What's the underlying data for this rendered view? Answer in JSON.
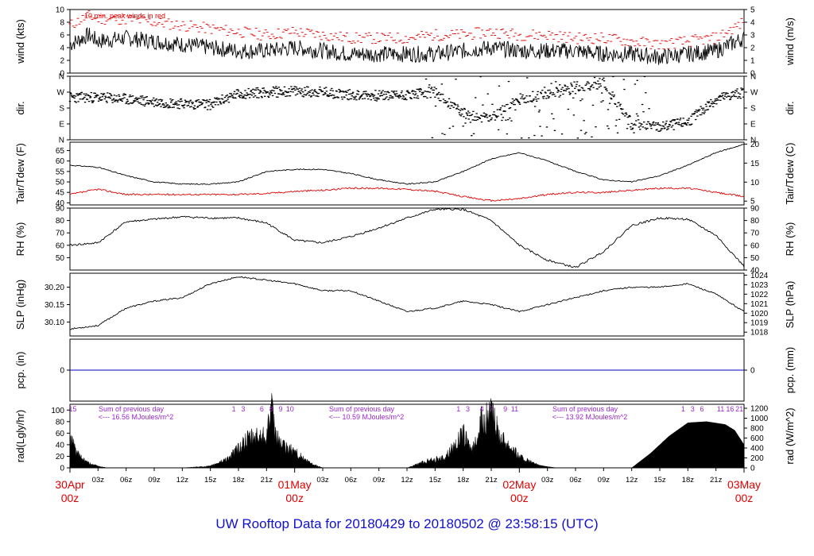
{
  "title": "UW Rooftop Data for 20180429  to  20180502 @ 23:58:15  (UTC)",
  "colors": {
    "title": "#1010d0",
    "peak": "#e00000",
    "dew": "#e00000",
    "precip": "#0000c0",
    "annot": "#9a28c8",
    "date": "#e00000",
    "line": "#000000"
  },
  "chart_data": [
    {
      "type": "line",
      "id": "wind",
      "ylabel_left": "wind (kts)",
      "ylabel_right": "wind (m/s)",
      "ylim": [
        0,
        10
      ],
      "ylim_right": [
        0,
        5
      ],
      "yticks": [
        0,
        2,
        4,
        6,
        8,
        10
      ],
      "yticks_right": [
        0,
        1,
        2,
        3,
        4,
        5
      ],
      "annotation": "10 min. peak winds in red",
      "x_hours": [
        0,
        2,
        3,
        6,
        9,
        12,
        15,
        18,
        21,
        24,
        27,
        30,
        33,
        36,
        39,
        42,
        45,
        48,
        51,
        54,
        57,
        60,
        63,
        66,
        69,
        72
      ],
      "series": [
        {
          "values": [
            4.5,
            6,
            5,
            5.5,
            5,
            4.5,
            4,
            3.5,
            3.5,
            4,
            3.5,
            3,
            3,
            3,
            3,
            3.5,
            4,
            3.5,
            3.5,
            3.5,
            3,
            3,
            2.5,
            3,
            3.5,
            5.5
          ]
        },
        {
          "values": [
            7.5,
            9,
            8.5,
            8.5,
            8,
            7.5,
            7,
            6.5,
            6,
            6.5,
            6,
            5.5,
            5.5,
            5.5,
            6,
            6,
            6.5,
            6,
            6,
            5.5,
            5.5,
            5,
            4.5,
            5,
            5.5,
            8
          ]
        }
      ]
    },
    {
      "type": "scatter",
      "id": "dir",
      "ylabel_left": "dir.",
      "ylabel_right": "dir.",
      "ylim": [
        0,
        360
      ],
      "yticks": [
        "N",
        "E",
        "S",
        "W",
        "N"
      ],
      "yticks_right": [
        "N",
        "E",
        "S",
        "W",
        "N"
      ],
      "x_hours": [
        0,
        3,
        6,
        9,
        12,
        15,
        18,
        21,
        24,
        27,
        30,
        33,
        36,
        39,
        42,
        45,
        48,
        51,
        54,
        57,
        60,
        63,
        66,
        69,
        72
      ],
      "values": [
        240,
        240,
        230,
        215,
        205,
        200,
        260,
        270,
        275,
        270,
        255,
        250,
        255,
        270,
        150,
        120,
        230,
        260,
        300,
        320,
        90,
        70,
        100,
        230,
        270
      ]
    },
    {
      "type": "line",
      "id": "temp",
      "ylabel_left": "Tair/Tdew (F)",
      "ylabel_right": "Tair/Tdew (C)",
      "ylim": [
        39,
        69
      ],
      "ylim_right": [
        4,
        20.5
      ],
      "yticks": [
        40,
        45,
        50,
        55,
        60,
        65
      ],
      "yticks_right": [
        5,
        10,
        15,
        20
      ],
      "x_hours": [
        0,
        3,
        6,
        9,
        12,
        15,
        18,
        21,
        24,
        27,
        30,
        33,
        36,
        39,
        42,
        45,
        48,
        51,
        54,
        57,
        60,
        63,
        66,
        69,
        72
      ],
      "series": [
        {
          "values": [
            58,
            57,
            53,
            50,
            49,
            49,
            50,
            55,
            56,
            56,
            54,
            51,
            49,
            50,
            55,
            61,
            64,
            60,
            55,
            51,
            50,
            53,
            58,
            64,
            68
          ]
        },
        {
          "values": [
            44,
            46.5,
            44,
            44,
            44,
            44,
            44,
            44.5,
            45.5,
            46,
            47,
            47,
            46.5,
            45.5,
            43,
            41,
            42,
            44,
            45,
            45,
            46,
            47,
            47,
            45,
            43
          ]
        }
      ]
    },
    {
      "type": "line",
      "id": "rh",
      "ylabel_left": "RH (%)",
      "ylabel_right": "RH (%)",
      "ylim": [
        40,
        90
      ],
      "yticks": [
        50,
        60,
        70,
        80,
        90
      ],
      "yticks_right": [
        40,
        50,
        60,
        70,
        80,
        90
      ],
      "x_hours": [
        0,
        3,
        6,
        9,
        12,
        15,
        18,
        21,
        24,
        27,
        30,
        33,
        36,
        39,
        42,
        45,
        48,
        51,
        54,
        57,
        60,
        63,
        66,
        69,
        72
      ],
      "values": [
        60,
        62,
        79,
        81,
        83,
        82,
        82,
        78,
        64,
        62,
        67,
        74,
        82,
        89,
        89,
        80,
        60,
        48,
        42,
        55,
        76,
        82,
        81,
        68,
        43
      ]
    },
    {
      "type": "line",
      "id": "slp",
      "ylabel_left": "SLP (inHg)",
      "ylabel_right": "SLP (hPa)",
      "ylim": [
        30.06,
        30.24
      ],
      "ylim_right": [
        1017.6,
        1024.2
      ],
      "yticks": [
        30.1,
        30.15,
        30.2
      ],
      "yticks_right": [
        1018,
        1019,
        1020,
        1021,
        1022,
        1023,
        1024
      ],
      "x_hours": [
        0,
        3,
        6,
        9,
        12,
        15,
        18,
        21,
        24,
        27,
        30,
        33,
        36,
        39,
        42,
        45,
        48,
        51,
        54,
        57,
        60,
        63,
        66,
        69,
        72
      ],
      "values": [
        30.08,
        30.09,
        30.14,
        30.16,
        30.17,
        30.21,
        30.23,
        30.22,
        30.21,
        30.19,
        30.19,
        30.16,
        30.13,
        30.14,
        30.16,
        30.15,
        30.13,
        30.15,
        30.17,
        30.19,
        30.2,
        30.2,
        30.21,
        30.18,
        30.13
      ]
    },
    {
      "type": "line",
      "id": "pcp",
      "ylabel_left": "pcp. (in)",
      "ylabel_right": "pcp. (mm)",
      "ytick_left": "0",
      "ytick_right": "0",
      "value": 0
    },
    {
      "type": "area",
      "id": "rad",
      "ylabel_left": "rad(Lgly/hr)",
      "ylabel_right": "rad (W/m^2)",
      "ylim": [
        0,
        110
      ],
      "ylim_right": [
        0,
        1280
      ],
      "yticks": [
        0,
        20,
        40,
        60,
        80,
        100
      ],
      "yticks_right": [
        0,
        200,
        400,
        600,
        800,
        1000,
        1200
      ],
      "x_hours": [
        0,
        1,
        2,
        3,
        4,
        12,
        15,
        17,
        18,
        19,
        20,
        21,
        21.5,
        22,
        23,
        24,
        25,
        26,
        27,
        36,
        38,
        40,
        42,
        43,
        44,
        45,
        46,
        47,
        48,
        49,
        50,
        51,
        52,
        60,
        62,
        64,
        66,
        68,
        70,
        71,
        72
      ],
      "values": [
        52,
        20,
        8,
        3,
        0,
        0,
        3,
        18,
        35,
        50,
        55,
        62,
        105,
        55,
        35,
        30,
        15,
        6,
        0,
        0,
        12,
        18,
        60,
        30,
        85,
        95,
        55,
        40,
        20,
        12,
        5,
        2,
        0,
        0,
        25,
        55,
        78,
        80,
        75,
        65,
        40
      ],
      "annotations": [
        {
          "line1": "Sum of previous day",
          "line2": "<--- 16.56 MJoules/m^2"
        },
        {
          "line1": "Sum of previous day",
          "line2": "<--- 10.59 MJoules/m^2"
        },
        {
          "line1": "Sum of previous day",
          "line2": "<--- 13.92 MJoules/m^2"
        }
      ],
      "hour_marks": [
        {
          "x": 0.3,
          "label": "15"
        },
        {
          "x": 17.5,
          "label": "1"
        },
        {
          "x": 18.5,
          "label": "3"
        },
        {
          "x": 20.5,
          "label": "6"
        },
        {
          "x": 21.5,
          "label": "8"
        },
        {
          "x": 22.5,
          "label": "9"
        },
        {
          "x": 23.5,
          "label": "10"
        },
        {
          "x": 41.5,
          "label": "1"
        },
        {
          "x": 42.5,
          "label": "3"
        },
        {
          "x": 44,
          "label": "4"
        },
        {
          "x": 45,
          "label": "7"
        },
        {
          "x": 46.5,
          "label": "9"
        },
        {
          "x": 47.5,
          "label": "11"
        },
        {
          "x": 65.5,
          "label": "1"
        },
        {
          "x": 66.5,
          "label": "3"
        },
        {
          "x": 67.5,
          "label": "6"
        },
        {
          "x": 69.5,
          "label": "11"
        },
        {
          "x": 70.5,
          "label": "16"
        },
        {
          "x": 71.5,
          "label": "21"
        }
      ]
    }
  ],
  "x_axis": {
    "hour_labels": [
      "03z",
      "06z",
      "09z",
      "12z",
      "15z",
      "18z",
      "21z",
      "03z",
      "06z",
      "09z",
      "12z",
      "15z",
      "18z",
      "21z",
      "03z",
      "06z",
      "09z",
      "12z",
      "15z",
      "18z",
      "21z"
    ],
    "hour_positions": [
      3,
      6,
      9,
      12,
      15,
      18,
      21,
      27,
      30,
      33,
      36,
      39,
      42,
      45,
      51,
      54,
      57,
      60,
      63,
      66,
      69
    ],
    "date_labels": [
      {
        "date": "30Apr",
        "time": "00z"
      },
      {
        "date": "01May",
        "time": "00z"
      },
      {
        "date": "02May",
        "time": "00z"
      },
      {
        "date": "03May",
        "time": "00z"
      }
    ],
    "date_positions": [
      0,
      24,
      48,
      72
    ]
  }
}
